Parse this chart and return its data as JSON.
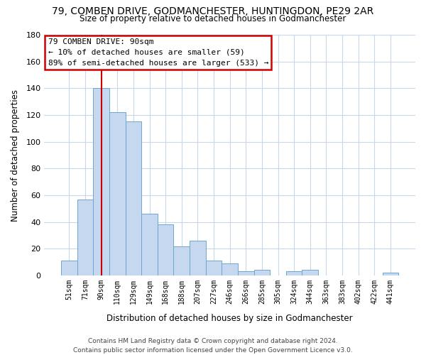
{
  "title": "79, COMBEN DRIVE, GODMANCHESTER, HUNTINGDON, PE29 2AR",
  "subtitle": "Size of property relative to detached houses in Godmanchester",
  "xlabel": "Distribution of detached houses by size in Godmanchester",
  "ylabel": "Number of detached properties",
  "bar_labels": [
    "51sqm",
    "71sqm",
    "90sqm",
    "110sqm",
    "129sqm",
    "149sqm",
    "168sqm",
    "188sqm",
    "207sqm",
    "227sqm",
    "246sqm",
    "266sqm",
    "285sqm",
    "305sqm",
    "324sqm",
    "344sqm",
    "363sqm",
    "383sqm",
    "402sqm",
    "422sqm",
    "441sqm"
  ],
  "bar_values": [
    11,
    57,
    140,
    122,
    115,
    46,
    38,
    22,
    26,
    11,
    9,
    3,
    4,
    0,
    3,
    4,
    0,
    0,
    0,
    0,
    2
  ],
  "bar_color": "#c5d8f0",
  "bar_edge_color": "#6ea6d0",
  "highlight_index": 2,
  "highlight_color": "#cc0000",
  "ylim": [
    0,
    180
  ],
  "yticks": [
    0,
    20,
    40,
    60,
    80,
    100,
    120,
    140,
    160,
    180
  ],
  "annotation_title": "79 COMBEN DRIVE: 90sqm",
  "annotation_line1": "← 10% of detached houses are smaller (59)",
  "annotation_line2": "89% of semi-detached houses are larger (533) →",
  "footer_line1": "Contains HM Land Registry data © Crown copyright and database right 2024.",
  "footer_line2": "Contains public sector information licensed under the Open Government Licence v3.0.",
  "background_color": "#ffffff",
  "grid_color": "#c8d8ea"
}
